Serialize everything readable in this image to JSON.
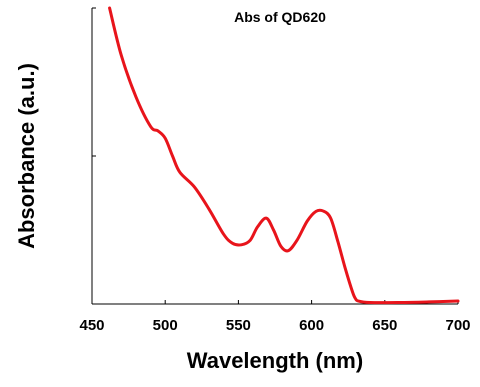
{
  "chart_data": {
    "type": "line",
    "title": "Abs of QD620",
    "xlabel": "Wavelength (nm)",
    "ylabel": "Absorbance (a.u.)",
    "xlim": [
      450,
      700
    ],
    "ylim": [
      0,
      1
    ],
    "x_ticks": [
      "450",
      "500",
      "550",
      "600",
      "650",
      "700"
    ],
    "y_ticks_labeled": false,
    "grid": false,
    "legend": "none",
    "series": [
      {
        "color": "#e8141b",
        "points": [
          [
            462,
            1.0
          ],
          [
            470,
            0.84
          ],
          [
            480,
            0.7
          ],
          [
            490,
            0.6
          ],
          [
            495,
            0.585
          ],
          [
            500,
            0.56
          ],
          [
            505,
            0.5
          ],
          [
            510,
            0.445
          ],
          [
            520,
            0.395
          ],
          [
            530,
            0.32
          ],
          [
            540,
            0.235
          ],
          [
            546,
            0.205
          ],
          [
            552,
            0.2
          ],
          [
            558,
            0.215
          ],
          [
            563,
            0.26
          ],
          [
            569,
            0.29
          ],
          [
            574,
            0.25
          ],
          [
            579,
            0.195
          ],
          [
            584,
            0.18
          ],
          [
            590,
            0.215
          ],
          [
            597,
            0.28
          ],
          [
            603,
            0.313
          ],
          [
            608,
            0.314
          ],
          [
            613,
            0.29
          ],
          [
            618,
            0.21
          ],
          [
            623,
            0.12
          ],
          [
            628,
            0.04
          ],
          [
            630,
            0.018
          ],
          [
            632,
            0.01
          ],
          [
            640,
            0.005
          ],
          [
            660,
            0.005
          ],
          [
            680,
            0.007
          ],
          [
            700,
            0.01
          ]
        ]
      }
    ]
  }
}
